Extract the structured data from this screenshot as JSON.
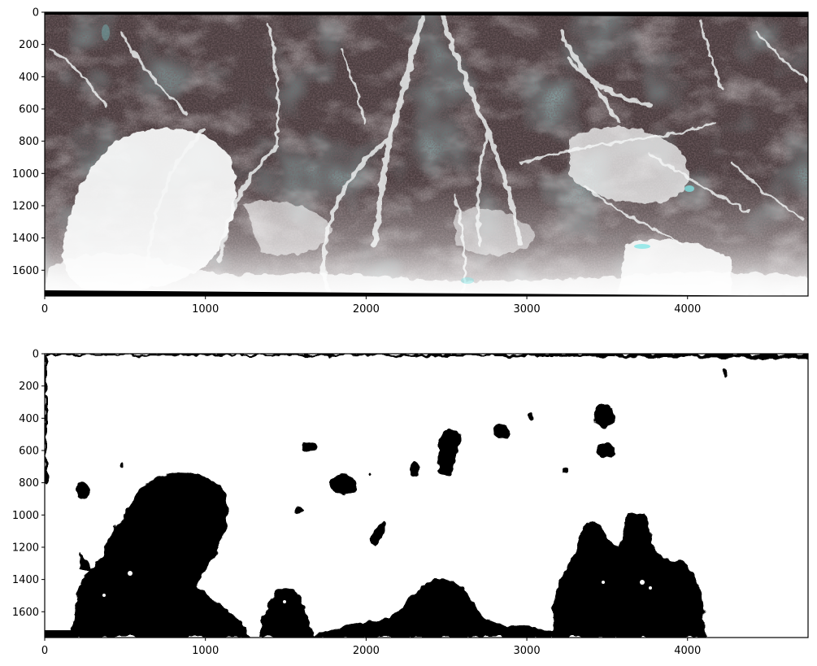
{
  "figure": {
    "background": "#ffffff",
    "axis_color": "#000000",
    "tick_label_color": "#000000"
  },
  "chart_data": [
    {
      "type": "heatmap",
      "name": "rgb-composite-image",
      "description_of_content": "false-colour satellite composite of mountainous terrain (dark red-brown vegetation, white snow/debris, cyan tinted areas)",
      "title": "",
      "xlabel": "",
      "ylabel": "",
      "xlim": [
        0,
        4750
      ],
      "ylim": [
        1760,
        0
      ],
      "x_ticks": [
        0,
        1000,
        2000,
        3000,
        4000
      ],
      "x_tick_labels": [
        "0",
        "1000",
        "2000",
        "3000",
        "4000"
      ],
      "y_ticks": [
        0,
        200,
        400,
        600,
        800,
        1000,
        1200,
        1400,
        1600
      ],
      "y_tick_labels": [
        "0",
        "200",
        "400",
        "600",
        "800",
        "1000",
        "1200",
        "1400",
        "1600"
      ],
      "colors": {
        "vegetation": "#3e2a2c",
        "rock": "#6f7272",
        "teal": "#4f7a7a",
        "snow": "#f3f4f4",
        "cyan_highlight": "#7fe6e6",
        "border": "#000000"
      }
    },
    {
      "type": "heatmap",
      "name": "binary-mask-image",
      "description_of_content": "binary mask, white background with black blobs; large black regions along bottom edge",
      "title": "",
      "xlabel": "",
      "ylabel": "",
      "xlim": [
        0,
        4750
      ],
      "ylim": [
        1760,
        0
      ],
      "x_ticks": [
        0,
        1000,
        2000,
        3000,
        4000
      ],
      "x_tick_labels": [
        "0",
        "1000",
        "2000",
        "3000",
        "4000"
      ],
      "y_ticks": [
        0,
        200,
        400,
        600,
        800,
        1000,
        1200,
        1400,
        1600
      ],
      "y_tick_labels": [
        "0",
        "200",
        "400",
        "600",
        "800",
        "1000",
        "1200",
        "1400",
        "1600"
      ],
      "colors": {
        "background": "#ffffff",
        "mask": "#000000"
      }
    }
  ]
}
